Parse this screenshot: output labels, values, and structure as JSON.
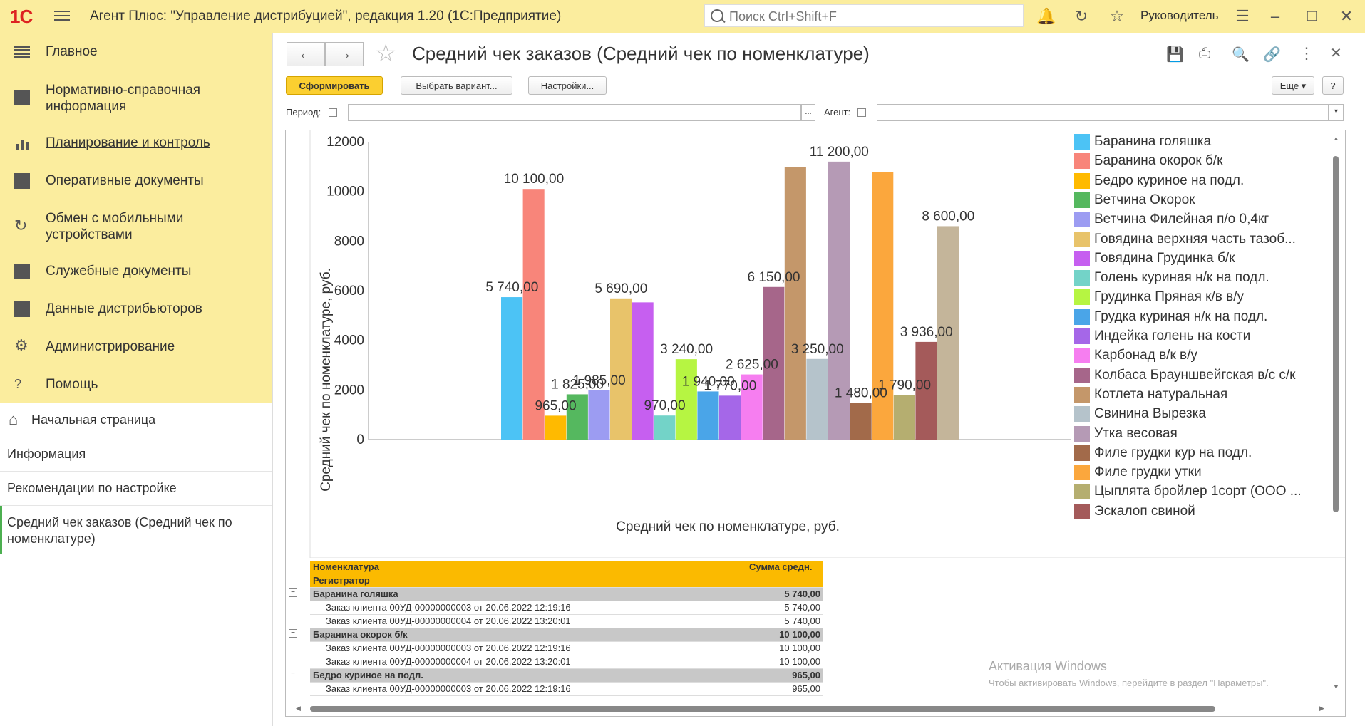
{
  "app": {
    "logo": "1С",
    "title": "Агент Плюс: \"Управление дистрибуцией\", редакция 1.20  (1С:Предприятие)",
    "search_placeholder": "Поиск Ctrl+Shift+F",
    "user": "Руководитель"
  },
  "sidebar": {
    "items": [
      {
        "label": "Главное",
        "icon": "menu-lines-icon"
      },
      {
        "label": "Нормативно-справочная информация",
        "icon": "catalog-icon"
      },
      {
        "label": "Планирование и контроль",
        "icon": "chart-icon"
      },
      {
        "label": "Оперативные документы",
        "icon": "documents-icon"
      },
      {
        "label": "Обмен с мобильными устройствами",
        "icon": "sync-icon"
      },
      {
        "label": "Служебные документы",
        "icon": "service-docs-icon"
      },
      {
        "label": "Данные дистрибьюторов",
        "icon": "distributors-icon"
      },
      {
        "label": "Администрирование",
        "icon": "gear-icon"
      },
      {
        "label": "Помощь",
        "icon": "question-icon"
      }
    ],
    "open_windows": [
      {
        "label": "Начальная страница"
      },
      {
        "label": "Информация"
      },
      {
        "label": "Рекомендации по настройке"
      },
      {
        "label": "Средний чек заказов (Средний чек по номенклатуре)"
      }
    ]
  },
  "report": {
    "title": "Средний чек заказов (Средний чек по номенклатуре)",
    "buttons": {
      "generate": "Сформировать",
      "choose_variant": "Выбрать вариант...",
      "settings": "Настройки...",
      "more": "Еще",
      "help": "?"
    },
    "filters": {
      "period_label": "Период:",
      "period_value": "",
      "agent_label": "Агент:",
      "agent_value": "",
      "dots": "..."
    }
  },
  "chart_data": {
    "type": "bar",
    "title": "",
    "ylabel": "Средний чек по номенклатуре, руб.",
    "xlabel": "Средний чек по номенклатуре, руб.",
    "ylim": [
      0,
      12000
    ],
    "yticks": [
      "0",
      "2000",
      "4000",
      "6000",
      "8000",
      "10000",
      "12000"
    ],
    "series": [
      {
        "name": "Баранина голяшка",
        "value": 5740,
        "label": "5 740,00",
        "color": "#4cc3f5"
      },
      {
        "name": "Баранина окорок б/к",
        "value": 10100,
        "label": "10 100,00",
        "color": "#f8857a"
      },
      {
        "name": "Бедро куриное на подл.",
        "value": 965,
        "label": "965,00",
        "color": "#ffba00"
      },
      {
        "name": "Ветчина Окорок",
        "value": 1825,
        "label": "1 825,00",
        "color": "#55b85f"
      },
      {
        "name": "Ветчина Филейная п/о 0,4кг",
        "value": 1985,
        "label": "1 985,00",
        "color": "#9c9cf2"
      },
      {
        "name": "Говядина верхняя часть тазоб...",
        "value": 5690,
        "label": "5 690,00",
        "color": "#e8c36a"
      },
      {
        "name": "Говядина Грудинка б/к",
        "value": 5530,
        "label": "",
        "color": "#c65ff0"
      },
      {
        "name": "Голень куриная н/к на подл.",
        "value": 970,
        "label": "970,00",
        "color": "#73d3c8"
      },
      {
        "name": "Грудинка Пряная к/в в/у",
        "value": 3240,
        "label": "3 240,00",
        "color": "#b6f542"
      },
      {
        "name": "Грудка куриная н/к на подл.",
        "value": 1940,
        "label": "1 940,00",
        "color": "#4aa5e8"
      },
      {
        "name": "Индейка голень на кости",
        "value": 1770,
        "label": "1 770,00",
        "color": "#a567e8"
      },
      {
        "name": "Карбонад в/к в/у",
        "value": 2625,
        "label": "2 625,00",
        "color": "#f67ef0"
      },
      {
        "name": "Колбаса Брауншвейгская в/с с/к",
        "value": 6150,
        "label": "6 150,00",
        "color": "#a6668a"
      },
      {
        "name": "Котлета натуральная",
        "value": 10970,
        "label": "",
        "color": "#c4976a"
      },
      {
        "name": "Свинина Вырезка",
        "value": 3250,
        "label": "3 250,00",
        "color": "#b5c3cb"
      },
      {
        "name": "Утка весовая",
        "value": 11200,
        "label": "11 200,00",
        "color": "#b59ab5"
      },
      {
        "name": "Филе грудки кур на подл.",
        "value": 1480,
        "label": "1 480,00",
        "color": "#a26a4a"
      },
      {
        "name": "Филе грудки утки",
        "value": 10780,
        "label": "",
        "color": "#fba73d"
      },
      {
        "name": "Цыплята бройлер 1сорт (ООО ...",
        "value": 1790,
        "label": "1 790,00",
        "color": "#b5ae70"
      },
      {
        "name": "Эскалоп свиной",
        "value": 3936,
        "label": "3 936,00",
        "color": "#a45a5a"
      },
      {
        "name": "",
        "value": 8600,
        "label": "8 600,00",
        "color": "#c4b59a"
      }
    ],
    "legend_position": "right"
  },
  "table": {
    "headers": {
      "col1_top": "Номенклатура",
      "col1_bottom": "Регистратор",
      "col2": "Сумма средн."
    },
    "groups": [
      {
        "name": "Баранина голяшка",
        "total": "5 740,00",
        "rows": [
          {
            "doc": "Заказ клиента 00УД-00000000003 от 20.06.2022 12:19:16",
            "value": "5 740,00"
          },
          {
            "doc": "Заказ клиента 00УД-00000000004 от 20.06.2022 13:20:01",
            "value": "5 740,00"
          }
        ]
      },
      {
        "name": "Баранина окорок б/к",
        "total": "10 100,00",
        "rows": [
          {
            "doc": "Заказ клиента 00УД-00000000003 от 20.06.2022 12:19:16",
            "value": "10 100,00"
          },
          {
            "doc": "Заказ клиента 00УД-00000000004 от 20.06.2022 13:20:01",
            "value": "10 100,00"
          }
        ]
      },
      {
        "name": "Бедро куриное на подл.",
        "total": "965,00",
        "rows": [
          {
            "doc": "Заказ клиента 00УД-00000000003 от 20.06.2022 12:19:16",
            "value": "965,00"
          }
        ]
      }
    ]
  },
  "watermark": {
    "title": "Активация Windows",
    "text": "Чтобы активировать Windows, перейдите в раздел \"Параметры\"."
  }
}
